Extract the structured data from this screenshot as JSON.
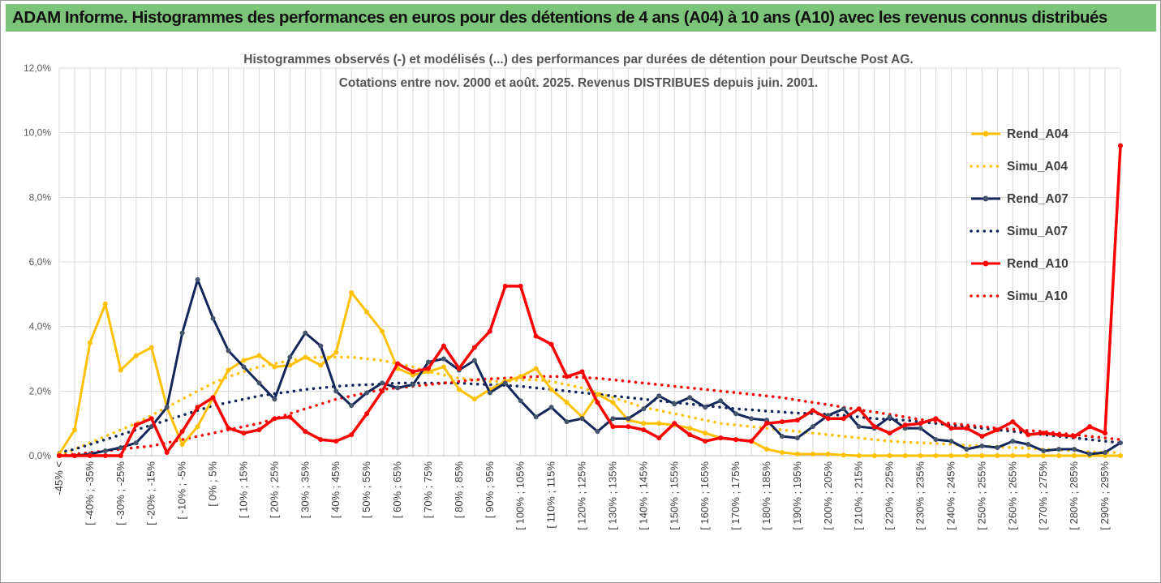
{
  "header": {
    "banner": "ADAM Informe. Histogrammes des performances en euros pour des détentions de 4 ans (A04) à 10 ans (A10) avec les revenus connus distribués"
  },
  "colors": {
    "banner_bg": "#7cc47a",
    "A04": "#ffc000",
    "A07": "#12265a",
    "A10": "#ff0000",
    "grid": "#d9d9d9"
  },
  "chart_data": {
    "type": "line",
    "title": "Histogrammes observés (-) et modélisés (...) des performances par durées de détention pour Deutsche Post AG.",
    "subtitle": "Cotations entre nov. 2000 et août. 2025. Revenus DISTRIBUES depuis juin. 2001.",
    "xlabel": "",
    "ylabel": "",
    "ylim": [
      0,
      12
    ],
    "y_ticks": [
      "0,0%",
      "2,0%",
      "4,0%",
      "6,0%",
      "8,0%",
      "10,0%",
      "12,0%"
    ],
    "grid": true,
    "legend_position": "right",
    "x_labels": [
      "-45% <",
      "[ -40% ; -35%",
      "[ -30% ; -25%",
      "[ -20% ; -15%",
      "[ -10% ; -5%",
      "[ 0% ; 5%",
      "[ 10% ; 15%",
      "[ 20% ; 25%",
      "[ 30% ; 35%",
      "[ 40% ; 45%",
      "[ 50% ; 55%",
      "[ 60% ; 65%",
      "[ 70% ; 75%",
      "[ 80% ; 85%",
      "[ 90% ; 95%",
      "[ 100% ; 105%",
      "[ 110% ; 115%",
      "[ 120% ; 125%",
      "[ 130% ; 135%",
      "[ 140% ; 145%",
      "[ 150% ; 155%",
      "[ 160% ; 165%",
      "[ 170% ; 175%",
      "[ 180% ; 185%",
      "[ 190% ; 195%",
      "[ 200% ; 205%",
      "[ 210% ; 215%",
      "[ 220% ; 225%",
      "[ 230% ; 235%",
      "[ 240% ; 245%",
      "[ 250% ; 255%",
      "[ 260% ; 265%",
      "[ 270% ; 275%",
      "[ 280% ; 285%",
      "[ 290% ; 295%"
    ],
    "series": [
      {
        "name": "Rend_A04",
        "style": "solid",
        "color": "#ffc000",
        "values": [
          0.05,
          0.8,
          3.5,
          4.7,
          2.65,
          3.1,
          3.35,
          1.5,
          0.35,
          0.9,
          1.8,
          2.65,
          2.95,
          3.1,
          2.75,
          2.8,
          3.05,
          2.8,
          3.2,
          5.05,
          4.45,
          3.85,
          2.7,
          2.5,
          2.6,
          2.75,
          2.05,
          1.75,
          2.05,
          2.3,
          2.45,
          2.7,
          2.05,
          1.65,
          1.2,
          1.9,
          1.65,
          1.1,
          1.0,
          1.0,
          0.95,
          0.85,
          0.7,
          0.55,
          0.5,
          0.45,
          0.2,
          0.1,
          0.05,
          0.05,
          0.05,
          0.02,
          0.0,
          0.0,
          0.0,
          0.0,
          0.0,
          0.0,
          0.0,
          0.0,
          0.0,
          0.0,
          0.0,
          0.0,
          0.0,
          0.0,
          0.0,
          0.0,
          0.0,
          0.0
        ]
      },
      {
        "name": "Simu_A04",
        "style": "dotted",
        "color": "#ffc000",
        "values": [
          0.0,
          0.2,
          0.4,
          0.6,
          0.8,
          1.0,
          1.25,
          1.5,
          1.75,
          2.0,
          2.25,
          2.45,
          2.6,
          2.75,
          2.85,
          2.95,
          3.02,
          3.05,
          3.05,
          3.05,
          3.0,
          2.95,
          2.85,
          2.75,
          2.6,
          2.5,
          2.4,
          2.35,
          2.3,
          2.3,
          2.35,
          2.35,
          2.3,
          2.2,
          2.1,
          1.95,
          1.8,
          1.65,
          1.5,
          1.4,
          1.3,
          1.2,
          1.1,
          1.0,
          0.95,
          0.9,
          0.85,
          0.8,
          0.75,
          0.7,
          0.65,
          0.6,
          0.55,
          0.5,
          0.45,
          0.42,
          0.4,
          0.38,
          0.35,
          0.32,
          0.3,
          0.28,
          0.25,
          0.23,
          0.2,
          0.18,
          0.15,
          0.12,
          0.1,
          0.1
        ]
      },
      {
        "name": "Rend_A07",
        "style": "solid",
        "color": "#12265a",
        "values": [
          0.0,
          0.0,
          0.05,
          0.15,
          0.25,
          0.4,
          0.9,
          1.5,
          3.8,
          5.45,
          4.25,
          3.25,
          2.75,
          2.25,
          1.75,
          3.05,
          3.8,
          3.4,
          2.0,
          1.55,
          1.95,
          2.25,
          2.1,
          2.2,
          2.9,
          3.0,
          2.65,
          2.95,
          1.95,
          2.25,
          1.7,
          1.2,
          1.5,
          1.05,
          1.15,
          0.75,
          1.15,
          1.15,
          1.45,
          1.85,
          1.6,
          1.8,
          1.5,
          1.7,
          1.3,
          1.15,
          1.1,
          0.6,
          0.55,
          0.9,
          1.25,
          1.45,
          0.9,
          0.85,
          1.2,
          0.85,
          0.85,
          0.5,
          0.45,
          0.2,
          0.3,
          0.25,
          0.45,
          0.35,
          0.15,
          0.2,
          0.2,
          0.05,
          0.1,
          0.4
        ]
      },
      {
        "name": "Simu_A07",
        "style": "dotted",
        "color": "#12265a",
        "values": [
          0.1,
          0.2,
          0.35,
          0.5,
          0.65,
          0.8,
          0.95,
          1.1,
          1.25,
          1.4,
          1.55,
          1.65,
          1.75,
          1.85,
          1.92,
          1.98,
          2.05,
          2.1,
          2.15,
          2.18,
          2.2,
          2.22,
          2.25,
          2.25,
          2.25,
          2.25,
          2.25,
          2.22,
          2.2,
          2.18,
          2.15,
          2.1,
          2.05,
          2.0,
          1.95,
          1.9,
          1.85,
          1.8,
          1.75,
          1.7,
          1.65,
          1.6,
          1.55,
          1.5,
          1.45,
          1.42,
          1.38,
          1.35,
          1.32,
          1.3,
          1.28,
          1.25,
          1.2,
          1.15,
          1.12,
          1.1,
          1.05,
          1.0,
          0.95,
          0.9,
          0.85,
          0.8,
          0.75,
          0.7,
          0.65,
          0.6,
          0.55,
          0.5,
          0.45,
          0.4
        ]
      },
      {
        "name": "Rend_A10",
        "style": "solid",
        "color": "#ff0000",
        "values": [
          0.0,
          0.0,
          0.0,
          0.0,
          0.0,
          0.95,
          1.15,
          0.1,
          0.75,
          1.5,
          1.8,
          0.85,
          0.7,
          0.8,
          1.15,
          1.2,
          0.75,
          0.5,
          0.45,
          0.65,
          1.3,
          2.0,
          2.85,
          2.6,
          2.7,
          3.4,
          2.7,
          3.35,
          3.85,
          5.25,
          5.25,
          3.7,
          3.45,
          2.45,
          2.6,
          1.65,
          0.9,
          0.9,
          0.8,
          0.55,
          1.0,
          0.65,
          0.45,
          0.55,
          0.5,
          0.45,
          1.0,
          1.05,
          1.1,
          1.4,
          1.15,
          1.15,
          1.45,
          0.9,
          0.7,
          0.95,
          1.0,
          1.15,
          0.85,
          0.85,
          0.6,
          0.8,
          1.05,
          0.65,
          0.7,
          0.65,
          0.6,
          0.9,
          0.7,
          9.6
        ]
      },
      {
        "name": "Simu_A10",
        "style": "dotted",
        "color": "#ff0000",
        "values": [
          0.0,
          0.05,
          0.1,
          0.15,
          0.2,
          0.25,
          0.3,
          0.4,
          0.5,
          0.6,
          0.7,
          0.8,
          0.9,
          1.0,
          1.15,
          1.3,
          1.45,
          1.6,
          1.75,
          1.85,
          1.95,
          2.05,
          2.1,
          2.15,
          2.2,
          2.25,
          2.3,
          2.35,
          2.38,
          2.4,
          2.42,
          2.45,
          2.45,
          2.45,
          2.42,
          2.4,
          2.35,
          2.3,
          2.25,
          2.2,
          2.15,
          2.1,
          2.05,
          2.0,
          1.95,
          1.9,
          1.85,
          1.8,
          1.72,
          1.65,
          1.58,
          1.5,
          1.42,
          1.35,
          1.28,
          1.2,
          1.12,
          1.05,
          1.0,
          0.95,
          0.9,
          0.85,
          0.82,
          0.78,
          0.75,
          0.7,
          0.65,
          0.6,
          0.55,
          0.5
        ]
      }
    ]
  }
}
